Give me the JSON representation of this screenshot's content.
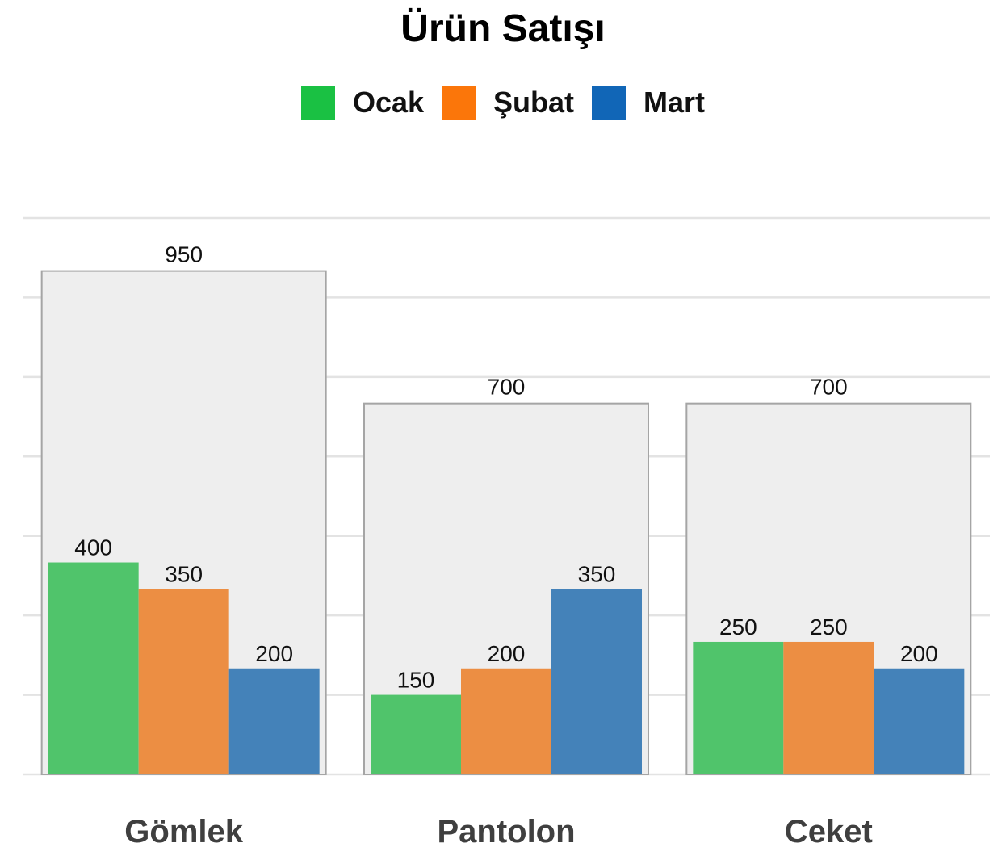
{
  "chart_data": {
    "type": "bar",
    "title": "Ürün Satışı",
    "categories": [
      "Gömlek",
      "Pantolon",
      "Ceket"
    ],
    "series": [
      {
        "name": "Ocak",
        "color": "#1ac143",
        "bar_color": "#50c46b",
        "values": [
          400,
          150,
          250
        ]
      },
      {
        "name": "Şubat",
        "color": "#fb760a",
        "bar_color": "#ec8e43",
        "values": [
          350,
          200,
          250
        ]
      },
      {
        "name": "Mart",
        "color": "#1166b7",
        "bar_color": "#4482b9",
        "values": [
          200,
          350,
          200
        ]
      }
    ],
    "totals": {
      "values": [
        950,
        700,
        700
      ],
      "color": "#eeeeee"
    },
    "ylim": [
      0,
      1050
    ],
    "grid": true,
    "legend_position": "top"
  }
}
